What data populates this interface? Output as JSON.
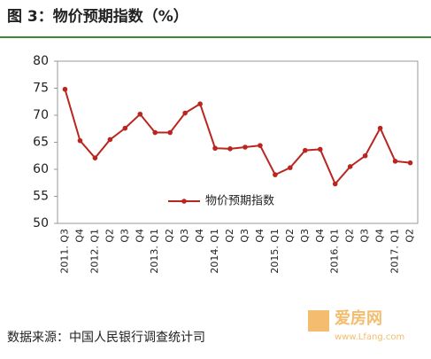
{
  "chart_data": {
    "type": "line",
    "title": "图 3：物价预期指数（%）",
    "categories": [
      "2011. Q3",
      "Q4",
      "2012. Q1",
      "Q2",
      "Q3",
      "Q4",
      "2013. Q1",
      "Q2",
      "Q3",
      "Q4",
      "2014. Q1",
      "Q2",
      "Q3",
      "Q4",
      "2015. Q1",
      "Q2",
      "Q3",
      "Q4",
      "2016. Q1",
      "Q2",
      "Q3",
      "Q4",
      "2017. Q1",
      "Q2"
    ],
    "series": [
      {
        "name": "物价预期指数",
        "color": "#b8261f",
        "values": [
          74.8,
          65.3,
          62.1,
          65.5,
          67.6,
          70.2,
          66.8,
          66.8,
          70.4,
          72.1,
          63.9,
          63.8,
          64.1,
          64.4,
          59.0,
          60.3,
          63.5,
          63.7,
          57.3,
          60.5,
          62.5,
          67.6,
          61.5,
          61.2
        ]
      }
    ],
    "ylim": [
      50,
      80
    ],
    "yticks": [
      50,
      55,
      60,
      65,
      70,
      75,
      80
    ],
    "grid": false,
    "source": "数据来源：中国人民银行调查统计司",
    "watermark": {
      "brand": "爱房网",
      "url": "www.Lfang.com"
    }
  }
}
